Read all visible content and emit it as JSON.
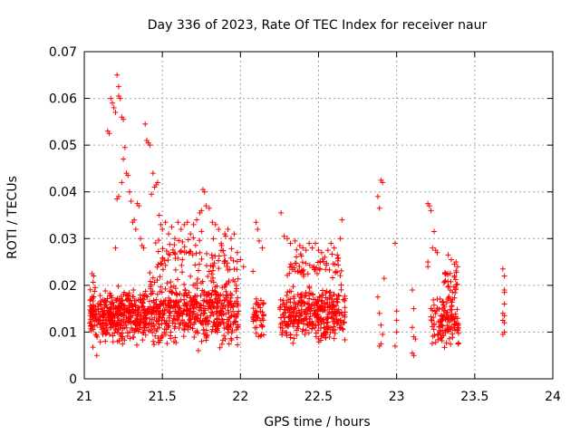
{
  "chart_data": {
    "type": "scatter",
    "title": "Day 336 of 2023, Rate Of TEC Index for receiver naur",
    "xlabel": "GPS time / hours",
    "ylabel": "ROTI / TECUs",
    "xlim": [
      21,
      24
    ],
    "ylim": [
      0,
      0.07
    ],
    "xticks": [
      21,
      21.5,
      22,
      22.5,
      23,
      23.5,
      24
    ],
    "xtick_labels": [
      "21",
      "21.5",
      "22",
      "22.5",
      "23",
      "23.5",
      "24"
    ],
    "yticks": [
      0,
      0.01,
      0.02,
      0.03,
      0.04,
      0.05,
      0.06,
      0.07
    ],
    "ytick_labels": [
      "0",
      "0.01",
      "0.02",
      "0.03",
      "0.04",
      "0.05",
      "0.06",
      "0.07"
    ],
    "grid": true,
    "marker": "+",
    "series": [
      {
        "name": "ROTI",
        "color": "#ff0000",
        "points": [
          [
            21.05,
            0.0225
          ],
          [
            21.06,
            0.022
          ],
          [
            21.07,
            0.0195
          ],
          [
            21.08,
            0.005
          ],
          [
            21.1,
            0.016
          ],
          [
            21.15,
            0.053
          ],
          [
            21.16,
            0.0525
          ],
          [
            21.17,
            0.06
          ],
          [
            21.18,
            0.059
          ],
          [
            21.19,
            0.058
          ],
          [
            21.2,
            0.057
          ],
          [
            21.21,
            0.065
          ],
          [
            21.22,
            0.0625
          ],
          [
            21.22,
            0.0605
          ],
          [
            21.23,
            0.06
          ],
          [
            21.24,
            0.056
          ],
          [
            21.25,
            0.0555
          ],
          [
            21.2,
            0.028
          ],
          [
            21.21,
            0.0385
          ],
          [
            21.22,
            0.039
          ],
          [
            21.24,
            0.042
          ],
          [
            21.25,
            0.047
          ],
          [
            21.26,
            0.0495
          ],
          [
            21.27,
            0.044
          ],
          [
            21.28,
            0.0435
          ],
          [
            21.29,
            0.04
          ],
          [
            21.3,
            0.038
          ],
          [
            21.31,
            0.0335
          ],
          [
            21.32,
            0.034
          ],
          [
            21.33,
            0.032
          ],
          [
            21.34,
            0.0375
          ],
          [
            21.35,
            0.037
          ],
          [
            21.36,
            0.03
          ],
          [
            21.37,
            0.0285
          ],
          [
            21.38,
            0.028
          ],
          [
            21.39,
            0.0545
          ],
          [
            21.4,
            0.051
          ],
          [
            21.41,
            0.0505
          ],
          [
            21.42,
            0.05
          ],
          [
            21.43,
            0.0395
          ],
          [
            21.44,
            0.044
          ],
          [
            21.45,
            0.041
          ],
          [
            21.46,
            0.0415
          ],
          [
            21.47,
            0.042
          ],
          [
            21.48,
            0.035
          ],
          [
            21.49,
            0.033
          ],
          [
            21.5,
            0.032
          ],
          [
            21.52,
            0.0335
          ],
          [
            21.54,
            0.031
          ],
          [
            21.56,
            0.0325
          ],
          [
            21.58,
            0.03
          ],
          [
            21.6,
            0.0335
          ],
          [
            21.62,
            0.032
          ],
          [
            21.64,
            0.033
          ],
          [
            21.66,
            0.0335
          ],
          [
            21.68,
            0.031
          ],
          [
            21.7,
            0.033
          ],
          [
            21.72,
            0.034
          ],
          [
            21.74,
            0.0355
          ],
          [
            21.75,
            0.036
          ],
          [
            21.76,
            0.0405
          ],
          [
            21.77,
            0.04
          ],
          [
            21.78,
            0.037
          ],
          [
            21.8,
            0.0365
          ],
          [
            21.82,
            0.0335
          ],
          [
            21.84,
            0.033
          ],
          [
            21.86,
            0.032
          ],
          [
            21.88,
            0.0285
          ],
          [
            21.9,
            0.031
          ],
          [
            21.92,
            0.032
          ],
          [
            21.94,
            0.03
          ],
          [
            21.96,
            0.031
          ],
          [
            21.98,
            0.027
          ],
          [
            22.0,
            0.0255
          ],
          [
            22.02,
            0.024
          ],
          [
            22.08,
            0.023
          ],
          [
            22.1,
            0.0335
          ],
          [
            22.11,
            0.032
          ],
          [
            22.12,
            0.0295
          ],
          [
            22.14,
            0.028
          ],
          [
            22.26,
            0.0355
          ],
          [
            22.28,
            0.0305
          ],
          [
            22.3,
            0.03
          ],
          [
            22.32,
            0.029
          ],
          [
            22.35,
            0.0295
          ],
          [
            22.38,
            0.0285
          ],
          [
            22.4,
            0.028
          ],
          [
            22.42,
            0.0275
          ],
          [
            22.44,
            0.029
          ],
          [
            22.46,
            0.028
          ],
          [
            22.48,
            0.029
          ],
          [
            22.5,
            0.0275
          ],
          [
            22.52,
            0.027
          ],
          [
            22.54,
            0.026
          ],
          [
            22.56,
            0.0275
          ],
          [
            22.58,
            0.029
          ],
          [
            22.6,
            0.028
          ],
          [
            22.62,
            0.0265
          ],
          [
            22.64,
            0.03
          ],
          [
            22.65,
            0.034
          ],
          [
            22.88,
            0.039
          ],
          [
            22.89,
            0.0365
          ],
          [
            22.9,
            0.0425
          ],
          [
            22.91,
            0.042
          ],
          [
            22.92,
            0.0215
          ],
          [
            22.99,
            0.029
          ],
          [
            23.2,
            0.0375
          ],
          [
            23.21,
            0.037
          ],
          [
            23.22,
            0.036
          ],
          [
            23.23,
            0.028
          ],
          [
            23.24,
            0.0315
          ],
          [
            23.25,
            0.0275
          ],
          [
            23.26,
            0.027
          ],
          [
            23.2,
            0.025
          ],
          [
            23.2,
            0.024
          ],
          [
            23.33,
            0.0265
          ],
          [
            23.35,
            0.0255
          ],
          [
            23.37,
            0.0245
          ],
          [
            23.38,
            0.025
          ],
          [
            23.39,
            0.024
          ],
          [
            23.68,
            0.0235
          ],
          [
            23.69,
            0.022
          ],
          [
            23.69,
            0.019
          ],
          [
            23.69,
            0.0185
          ],
          [
            23.69,
            0.016
          ],
          [
            23.68,
            0.014
          ],
          [
            23.69,
            0.0135
          ],
          [
            23.68,
            0.0125
          ],
          [
            23.69,
            0.012
          ],
          [
            23.69,
            0.01
          ],
          [
            23.68,
            0.0095
          ],
          [
            22.88,
            0.0175
          ],
          [
            22.89,
            0.014
          ],
          [
            22.9,
            0.0115
          ],
          [
            22.91,
            0.0095
          ],
          [
            22.9,
            0.0075
          ],
          [
            22.89,
            0.007
          ],
          [
            23.0,
            0.0145
          ],
          [
            23.0,
            0.0125
          ],
          [
            23.0,
            0.01
          ],
          [
            22.99,
            0.007
          ],
          [
            23.1,
            0.019
          ],
          [
            23.11,
            0.015
          ],
          [
            23.1,
            0.011
          ],
          [
            23.11,
            0.009
          ],
          [
            23.12,
            0.0085
          ],
          [
            23.1,
            0.0055
          ],
          [
            23.11,
            0.005
          ]
        ]
      }
    ],
    "clusters": [
      {
        "x": [
          21.03,
          21.4
        ],
        "y": [
          0.006,
          0.021
        ],
        "n": 420,
        "seed": 11
      },
      {
        "x": [
          21.4,
          21.99
        ],
        "y": [
          0.005,
          0.024
        ],
        "n": 560,
        "seed": 23
      },
      {
        "x": [
          21.45,
          21.99
        ],
        "y": [
          0.02,
          0.032
        ],
        "n": 90,
        "seed": 37
      },
      {
        "x": [
          22.08,
          22.15
        ],
        "y": [
          0.007,
          0.02
        ],
        "n": 45,
        "seed": 41
      },
      {
        "x": [
          22.25,
          22.67
        ],
        "y": [
          0.006,
          0.022
        ],
        "n": 380,
        "seed": 53
      },
      {
        "x": [
          22.3,
          22.65
        ],
        "y": [
          0.02,
          0.028
        ],
        "n": 60,
        "seed": 67
      },
      {
        "x": [
          23.22,
          23.4
        ],
        "y": [
          0.005,
          0.02
        ],
        "n": 140,
        "seed": 71
      },
      {
        "x": [
          23.3,
          23.4
        ],
        "y": [
          0.018,
          0.025
        ],
        "n": 25,
        "seed": 79
      }
    ]
  }
}
